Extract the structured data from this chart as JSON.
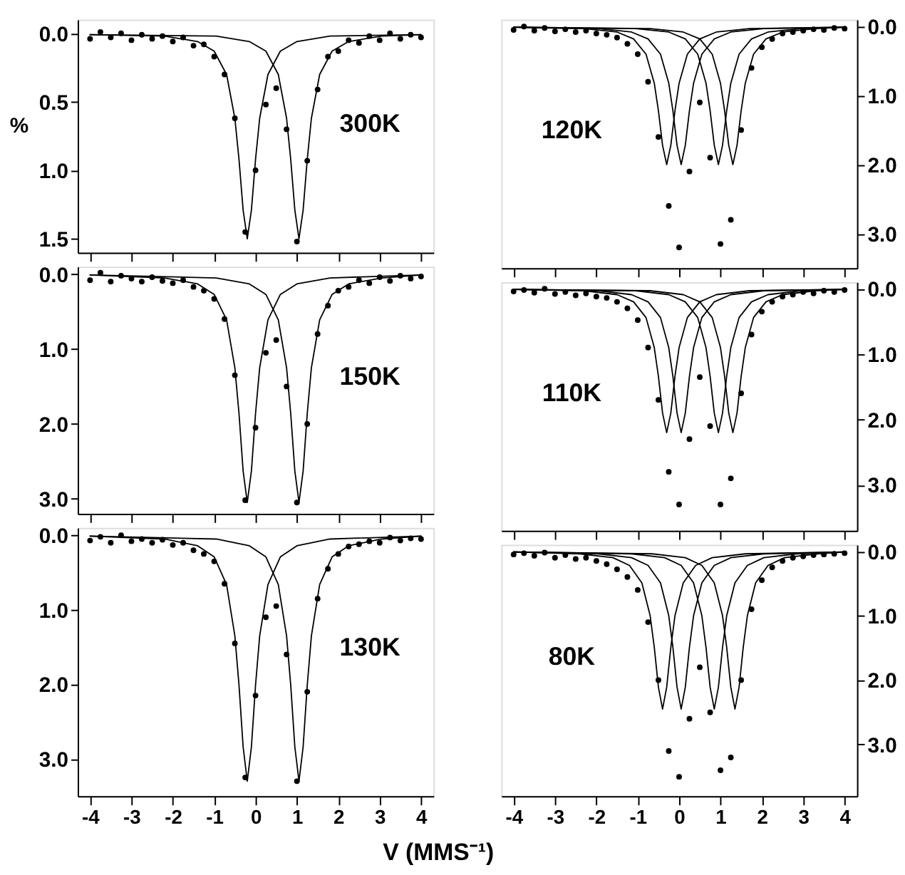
{
  "chart_data": [
    {
      "type": "line",
      "ylabel": "%",
      "annotations": [
        "300K"
      ],
      "xlim": [
        -4.3,
        4.3
      ],
      "xticks": [
        -4,
        -3,
        -2,
        -1,
        0,
        1,
        2,
        3,
        4
      ],
      "ylim": [
        1.6,
        -0.1
      ],
      "yticks": [
        {
          "value": 0,
          "label": "0.0"
        },
        {
          "value": 0.5,
          "label": "0.5"
        },
        {
          "value": 1,
          "label": "1.0"
        },
        {
          "value": 1.5,
          "label": "1.5"
        }
      ],
      "tick_labels": "y",
      "series": [
        {
          "type": "scatter",
          "marker": "circle",
          "color": "#000000",
          "x": [
            -4,
            -3.75,
            -3.5,
            -3.25,
            -3,
            -2.75,
            -2.5,
            -2.25,
            -2,
            -1.75,
            -1.5,
            -1.25,
            -1,
            -0.75,
            -0.5,
            -0.25,
            0,
            0.25,
            0.5,
            0.75,
            1,
            1.25,
            1.5,
            1.75,
            2,
            2.25,
            2.5,
            2.75,
            3,
            3.25,
            3.5,
            3.75,
            4
          ],
          "values": [
            0.04,
            -0.01,
            0.03,
            0.0,
            0.05,
            0.01,
            0.04,
            0.02,
            0.06,
            0.03,
            0.09,
            0.08,
            0.17,
            0.3,
            0.62,
            1.45,
            1.0,
            0.52,
            0.4,
            0.7,
            1.52,
            0.93,
            0.41,
            0.17,
            0.13,
            0.05,
            0.07,
            0.02,
            0.05,
            0.0,
            0.04,
            0.01,
            0.03
          ]
        },
        {
          "type": "line",
          "line_style": "solid",
          "color": "#000000",
          "x": [
            -4,
            -2.2,
            -1.4,
            -1.0,
            -0.7,
            -0.5,
            -0.4,
            -0.3,
            -0.2,
            -0.1,
            0.0,
            0.1,
            0.3,
            0.6,
            1.0,
            1.8,
            4
          ],
          "values": [
            0.01,
            0.02,
            0.06,
            0.13,
            0.3,
            0.62,
            0.92,
            1.29,
            1.5,
            1.29,
            0.92,
            0.62,
            0.3,
            0.13,
            0.06,
            0.02,
            0.01
          ]
        },
        {
          "type": "line",
          "line_style": "solid",
          "color": "#000000",
          "x": [
            -4,
            -0.95,
            -0.15,
            0.25,
            0.55,
            0.75,
            0.85,
            0.95,
            1.05,
            1.15,
            1.25,
            1.35,
            1.55,
            1.85,
            2.25,
            3.05,
            4
          ],
          "values": [
            0.01,
            0.02,
            0.06,
            0.13,
            0.3,
            0.62,
            0.92,
            1.29,
            1.5,
            1.29,
            0.92,
            0.62,
            0.3,
            0.13,
            0.06,
            0.02,
            0.01
          ]
        }
      ]
    },
    {
      "type": "line",
      "annotations": [
        "150K"
      ],
      "xlim": [
        -4.3,
        4.3
      ],
      "xticks": [
        -4,
        -3,
        -2,
        -1,
        0,
        1,
        2,
        3,
        4
      ],
      "ylim": [
        3.2,
        -0.1
      ],
      "yticks": [
        {
          "value": 0,
          "label": "0.0"
        },
        {
          "value": 1,
          "label": "1.0"
        },
        {
          "value": 2,
          "label": "2.0"
        },
        {
          "value": 3,
          "label": "3.0"
        }
      ],
      "tick_labels": "y",
      "series": [
        {
          "type": "scatter",
          "marker": "circle",
          "color": "#000000",
          "x": [
            -4,
            -3.75,
            -3.5,
            -3.25,
            -3,
            -2.75,
            -2.5,
            -2.25,
            -2,
            -1.75,
            -1.5,
            -1.25,
            -1,
            -0.75,
            -0.5,
            -0.25,
            0,
            0.25,
            0.5,
            0.75,
            1,
            1.25,
            1.5,
            1.75,
            2,
            2.25,
            2.5,
            2.75,
            3,
            3.25,
            3.5,
            3.75,
            4
          ],
          "values": [
            0.08,
            -0.02,
            0.1,
            0.02,
            0.06,
            0.1,
            0.04,
            0.09,
            0.12,
            0.08,
            0.17,
            0.22,
            0.33,
            0.6,
            1.35,
            3.02,
            2.05,
            1.05,
            0.88,
            1.5,
            3.05,
            2.0,
            0.8,
            0.42,
            0.22,
            0.17,
            0.08,
            0.12,
            0.04,
            0.09,
            0.02,
            0.06,
            0.03
          ]
        },
        {
          "type": "line",
          "line_style": "solid",
          "color": "#000000",
          "x": [
            -4,
            -2.2,
            -1.4,
            -1.0,
            -0.7,
            -0.5,
            -0.4,
            -0.3,
            -0.2,
            -0.1,
            0.0,
            0.1,
            0.3,
            0.6,
            1.0,
            1.8,
            4
          ],
          "values": [
            0.01,
            0.05,
            0.13,
            0.27,
            0.61,
            1.25,
            1.86,
            2.63,
            3.05,
            2.63,
            1.86,
            1.25,
            0.61,
            0.27,
            0.13,
            0.05,
            0.01
          ]
        },
        {
          "type": "line",
          "line_style": "solid",
          "color": "#000000",
          "x": [
            -4,
            -0.95,
            -0.15,
            0.25,
            0.55,
            0.75,
            0.85,
            0.95,
            1.05,
            1.15,
            1.25,
            1.35,
            1.55,
            1.85,
            2.25,
            3.05,
            4
          ],
          "values": [
            0.01,
            0.05,
            0.13,
            0.27,
            0.61,
            1.25,
            1.86,
            2.63,
            3.05,
            2.63,
            1.86,
            1.25,
            0.61,
            0.27,
            0.13,
            0.05,
            0.01
          ]
        }
      ]
    },
    {
      "type": "line",
      "xlabel": "V (MMS⁻¹)",
      "annotations": [
        "130K"
      ],
      "xlim": [
        -4.3,
        4.3
      ],
      "xticks": [
        -4,
        -3,
        -2,
        -1,
        0,
        1,
        2,
        3,
        4
      ],
      "ylim": [
        3.5,
        -0.1
      ],
      "yticks": [
        {
          "value": 0,
          "label": "0.0"
        },
        {
          "value": 1,
          "label": "1.0"
        },
        {
          "value": 2,
          "label": "2.0"
        },
        {
          "value": 3,
          "label": "3.0"
        }
      ],
      "series": [
        {
          "type": "scatter",
          "marker": "circle",
          "color": "#000000",
          "x": [
            -4,
            -3.75,
            -3.5,
            -3.25,
            -3,
            -2.75,
            -2.5,
            -2.25,
            -2,
            -1.75,
            -1.5,
            -1.25,
            -1,
            -0.75,
            -0.5,
            -0.25,
            0,
            0.25,
            0.5,
            0.75,
            1,
            1.25,
            1.5,
            1.75,
            2,
            2.25,
            2.5,
            2.75,
            3,
            3.25,
            3.5,
            3.75,
            4
          ],
          "values": [
            0.07,
            0.02,
            0.1,
            0.0,
            0.08,
            0.05,
            0.1,
            0.06,
            0.13,
            0.1,
            0.2,
            0.25,
            0.35,
            0.65,
            1.45,
            3.25,
            2.15,
            1.1,
            0.95,
            1.6,
            3.3,
            2.1,
            0.85,
            0.45,
            0.25,
            0.15,
            0.12,
            0.08,
            0.1,
            0.03,
            0.07,
            0.04,
            0.05
          ]
        },
        {
          "type": "line",
          "line_style": "solid",
          "color": "#000000",
          "x": [
            -4,
            -2.2,
            -1.4,
            -1.0,
            -0.7,
            -0.5,
            -0.4,
            -0.3,
            -0.2,
            -0.1,
            0.0,
            0.1,
            0.3,
            0.6,
            1.0,
            1.8,
            4
          ],
          "values": [
            0.01,
            0.05,
            0.14,
            0.29,
            0.66,
            1.35,
            2.01,
            2.84,
            3.3,
            2.84,
            2.01,
            1.35,
            0.66,
            0.29,
            0.14,
            0.05,
            0.01
          ]
        },
        {
          "type": "line",
          "line_style": "solid",
          "color": "#000000",
          "x": [
            -4,
            -0.95,
            -0.15,
            0.25,
            0.55,
            0.75,
            0.85,
            0.95,
            1.05,
            1.15,
            1.25,
            1.35,
            1.55,
            1.85,
            2.25,
            3.05,
            4
          ],
          "values": [
            0.01,
            0.05,
            0.14,
            0.29,
            0.66,
            1.35,
            2.01,
            2.84,
            3.3,
            2.84,
            2.01,
            1.35,
            0.66,
            0.29,
            0.14,
            0.05,
            0.01
          ]
        }
      ]
    },
    {
      "type": "line",
      "annotations": [
        "120K"
      ],
      "xlim": [
        -4.3,
        4.3
      ],
      "xticks": [
        -4,
        -3,
        -2,
        -1,
        0,
        1,
        2,
        3,
        4
      ],
      "ylim": [
        3.5,
        -0.1
      ],
      "yticks": [
        {
          "value": 0,
          "label": "0.0"
        },
        {
          "value": 1,
          "label": "1.0"
        },
        {
          "value": 2,
          "label": "2.0"
        },
        {
          "value": 3,
          "label": "3.0"
        }
      ],
      "tick_labels": "y",
      "series": [
        {
          "type": "scatter",
          "marker": "circle",
          "color": "#000000",
          "x": [
            -4,
            -3.75,
            -3.5,
            -3.25,
            -3,
            -2.75,
            -2.5,
            -2.25,
            -2,
            -1.75,
            -1.5,
            -1.25,
            -1,
            -0.75,
            -0.5,
            -0.25,
            0,
            0.25,
            0.5,
            0.75,
            1,
            1.25,
            1.5,
            1.75,
            2,
            2.25,
            2.5,
            2.75,
            3,
            3.25,
            3.5,
            3.75,
            4
          ],
          "values": [
            0.05,
            0.0,
            0.06,
            0.02,
            0.07,
            0.04,
            0.08,
            0.06,
            0.1,
            0.12,
            0.16,
            0.25,
            0.4,
            0.8,
            1.6,
            2.6,
            3.2,
            2.1,
            1.1,
            1.9,
            3.15,
            2.8,
            1.5,
            0.6,
            0.3,
            0.18,
            0.1,
            0.08,
            0.06,
            0.04,
            0.05,
            0.02,
            0.03
          ]
        },
        {
          "type": "line",
          "line_style": "solid",
          "color": "#000000",
          "x": [
            -4,
            -2.3,
            -1.5,
            -1.1,
            -0.8,
            -0.6,
            -0.5,
            -0.4,
            -0.3,
            -0.2,
            -0.1,
            0.0,
            0.2,
            0.5,
            0.9,
            1.7,
            4
          ],
          "values": [
            0.01,
            0.03,
            0.08,
            0.18,
            0.4,
            0.82,
            1.22,
            1.72,
            2.0,
            1.72,
            1.22,
            0.82,
            0.4,
            0.18,
            0.08,
            0.03,
            0.01
          ]
        },
        {
          "type": "line",
          "line_style": "solid",
          "color": "#000000",
          "x": [
            -4,
            -1.95,
            -1.15,
            -0.75,
            -0.45,
            -0.25,
            -0.15,
            -0.05,
            0.05,
            0.15,
            0.25,
            0.35,
            0.55,
            0.85,
            1.25,
            2.05,
            4
          ],
          "values": [
            0.01,
            0.03,
            0.08,
            0.18,
            0.4,
            0.82,
            1.22,
            1.72,
            2.0,
            1.72,
            1.22,
            0.82,
            0.4,
            0.18,
            0.08,
            0.03,
            0.01
          ]
        },
        {
          "type": "line",
          "line_style": "solid",
          "color": "#000000",
          "x": [
            -4,
            -1.05,
            -0.25,
            0.15,
            0.45,
            0.65,
            0.75,
            0.85,
            0.95,
            1.05,
            1.15,
            1.25,
            1.45,
            1.75,
            2.15,
            2.95,
            4
          ],
          "values": [
            0.01,
            0.03,
            0.08,
            0.18,
            0.4,
            0.82,
            1.22,
            1.72,
            2.0,
            1.72,
            1.22,
            0.82,
            0.4,
            0.18,
            0.08,
            0.03,
            0.01
          ]
        },
        {
          "type": "line",
          "line_style": "solid",
          "color": "#000000",
          "x": [
            -4,
            -0.7,
            0.1,
            0.5,
            0.8,
            1.0,
            1.1,
            1.2,
            1.3,
            1.4,
            1.5,
            1.6,
            1.8,
            2.1,
            2.5,
            3.3,
            4
          ],
          "values": [
            0.01,
            0.03,
            0.08,
            0.18,
            0.4,
            0.82,
            1.22,
            1.72,
            2.0,
            1.72,
            1.22,
            0.82,
            0.4,
            0.18,
            0.08,
            0.03,
            0.01
          ]
        }
      ]
    },
    {
      "type": "line",
      "annotations": [
        "110K"
      ],
      "xlim": [
        -4.3,
        4.3
      ],
      "xticks": [
        -4,
        -3,
        -2,
        -1,
        0,
        1,
        2,
        3,
        4
      ],
      "ylim": [
        3.7,
        -0.1
      ],
      "yticks": [
        {
          "value": 0,
          "label": "0.0"
        },
        {
          "value": 1,
          "label": "1.0"
        },
        {
          "value": 2,
          "label": "2.0"
        },
        {
          "value": 3,
          "label": "3.0"
        }
      ],
      "tick_labels": "y",
      "series": [
        {
          "type": "scatter",
          "marker": "circle",
          "color": "#000000",
          "x": [
            -4,
            -3.75,
            -3.5,
            -3.25,
            -3,
            -2.75,
            -2.5,
            -2.25,
            -2,
            -1.75,
            -1.5,
            -1.25,
            -1,
            -0.75,
            -0.5,
            -0.25,
            0,
            0.25,
            0.5,
            0.75,
            1,
            1.25,
            1.5,
            1.75,
            2,
            2.25,
            2.5,
            2.75,
            3,
            3.25,
            3.5,
            3.75,
            4
          ],
          "values": [
            0.04,
            0.02,
            0.06,
            0.0,
            0.08,
            0.05,
            0.1,
            0.07,
            0.12,
            0.14,
            0.2,
            0.3,
            0.48,
            0.9,
            1.7,
            2.8,
            3.3,
            2.3,
            1.35,
            2.1,
            3.3,
            2.9,
            1.6,
            0.7,
            0.35,
            0.2,
            0.12,
            0.09,
            0.05,
            0.07,
            0.03,
            0.05,
            0.02
          ]
        },
        {
          "type": "line",
          "line_style": "solid",
          "color": "#000000",
          "x": [
            -4,
            -2.3,
            -1.5,
            -1.1,
            -0.8,
            -0.6,
            -0.5,
            -0.4,
            -0.3,
            -0.2,
            -0.1,
            0.0,
            0.2,
            0.5,
            0.9,
            1.7,
            4
          ],
          "values": [
            0.01,
            0.03,
            0.09,
            0.2,
            0.44,
            0.9,
            1.34,
            1.9,
            2.2,
            1.9,
            1.34,
            0.9,
            0.44,
            0.2,
            0.09,
            0.03,
            0.01
          ]
        },
        {
          "type": "line",
          "line_style": "solid",
          "color": "#000000",
          "x": [
            -4,
            -1.95,
            -1.15,
            -0.75,
            -0.45,
            -0.25,
            -0.15,
            -0.05,
            0.05,
            0.15,
            0.25,
            0.35,
            0.55,
            0.85,
            1.25,
            2.05,
            4
          ],
          "values": [
            0.01,
            0.03,
            0.09,
            0.2,
            0.44,
            0.9,
            1.34,
            1.9,
            2.2,
            1.9,
            1.34,
            0.9,
            0.44,
            0.2,
            0.09,
            0.03,
            0.01
          ]
        },
        {
          "type": "line",
          "line_style": "solid",
          "color": "#000000",
          "x": [
            -4,
            -1.05,
            -0.25,
            0.15,
            0.45,
            0.65,
            0.75,
            0.85,
            0.95,
            1.05,
            1.15,
            1.25,
            1.45,
            1.75,
            2.15,
            2.95,
            4
          ],
          "values": [
            0.01,
            0.03,
            0.09,
            0.2,
            0.44,
            0.9,
            1.34,
            1.9,
            2.2,
            1.9,
            1.34,
            0.9,
            0.44,
            0.2,
            0.09,
            0.03,
            0.01
          ]
        },
        {
          "type": "line",
          "line_style": "solid",
          "color": "#000000",
          "x": [
            -4,
            -0.7,
            0.1,
            0.5,
            0.8,
            1.0,
            1.1,
            1.2,
            1.3,
            1.4,
            1.5,
            1.6,
            1.8,
            2.1,
            2.5,
            3.3,
            4
          ],
          "values": [
            0.01,
            0.03,
            0.09,
            0.2,
            0.44,
            0.9,
            1.34,
            1.9,
            2.2,
            1.9,
            1.34,
            0.9,
            0.44,
            0.2,
            0.09,
            0.03,
            0.01
          ]
        }
      ]
    },
    {
      "type": "line",
      "annotations": [
        "80K"
      ],
      "xlim": [
        -4.3,
        4.3
      ],
      "xticks": [
        -4,
        -3,
        -2,
        -1,
        0,
        1,
        2,
        3,
        4
      ],
      "ylim": [
        3.8,
        -0.1
      ],
      "yticks": [
        {
          "value": 0,
          "label": "0.0"
        },
        {
          "value": 1,
          "label": "1.0"
        },
        {
          "value": 2,
          "label": "2.0"
        },
        {
          "value": 3,
          "label": "3.0"
        }
      ],
      "series": [
        {
          "type": "scatter",
          "marker": "circle",
          "color": "#000000",
          "x": [
            -4,
            -3.75,
            -3.5,
            -3.25,
            -3,
            -2.75,
            -2.5,
            -2.25,
            -2,
            -1.75,
            -1.5,
            -1.25,
            -1,
            -0.75,
            -0.5,
            -0.25,
            0,
            0.25,
            0.5,
            0.75,
            1,
            1.25,
            1.5,
            1.75,
            2,
            2.25,
            2.5,
            2.75,
            3,
            3.25,
            3.5,
            3.75,
            4
          ],
          "values": [
            0.05,
            0.03,
            0.07,
            0.02,
            0.1,
            0.06,
            0.12,
            0.1,
            0.15,
            0.2,
            0.28,
            0.4,
            0.6,
            1.1,
            2.0,
            3.1,
            3.5,
            2.6,
            1.8,
            2.5,
            3.4,
            3.2,
            2.0,
            0.9,
            0.45,
            0.25,
            0.15,
            0.1,
            0.08,
            0.06,
            0.05,
            0.04,
            0.03
          ]
        },
        {
          "type": "line",
          "line_style": "solid",
          "color": "#000000",
          "x": [
            -4,
            -2.4,
            -1.6,
            -1.2,
            -0.9,
            -0.7,
            -0.6,
            -0.5,
            -0.4,
            -0.3,
            -0.2,
            -0.1,
            0.1,
            0.4,
            0.8,
            1.6,
            4
          ],
          "values": [
            0.01,
            0.04,
            0.1,
            0.22,
            0.49,
            1.0,
            1.49,
            2.11,
            2.45,
            2.11,
            1.49,
            1.0,
            0.49,
            0.22,
            0.1,
            0.04,
            0.01
          ]
        },
        {
          "type": "line",
          "line_style": "solid",
          "color": "#000000",
          "x": [
            -4,
            -1.95,
            -1.15,
            -0.75,
            -0.45,
            -0.25,
            -0.15,
            -0.05,
            0.05,
            0.15,
            0.25,
            0.35,
            0.55,
            0.85,
            1.25,
            2.05,
            4
          ],
          "values": [
            0.01,
            0.04,
            0.1,
            0.22,
            0.49,
            1.0,
            1.49,
            2.11,
            2.45,
            2.11,
            1.49,
            1.0,
            0.49,
            0.22,
            0.1,
            0.04,
            0.01
          ]
        },
        {
          "type": "line",
          "line_style": "solid",
          "color": "#000000",
          "x": [
            -4,
            -1.15,
            -0.35,
            0.05,
            0.35,
            0.55,
            0.65,
            0.75,
            0.85,
            0.95,
            1.05,
            1.15,
            1.35,
            1.65,
            2.05,
            2.85,
            4
          ],
          "values": [
            0.01,
            0.04,
            0.1,
            0.22,
            0.49,
            1.0,
            1.49,
            2.11,
            2.45,
            2.11,
            1.49,
            1.0,
            0.49,
            0.22,
            0.1,
            0.04,
            0.01
          ]
        },
        {
          "type": "line",
          "line_style": "solid",
          "color": "#000000",
          "x": [
            -4,
            -0.65,
            0.15,
            0.55,
            0.85,
            1.05,
            1.15,
            1.25,
            1.35,
            1.45,
            1.55,
            1.65,
            1.85,
            2.15,
            2.55,
            3.35,
            4
          ],
          "values": [
            0.01,
            0.04,
            0.1,
            0.22,
            0.49,
            1.0,
            1.49,
            2.11,
            2.45,
            2.11,
            1.49,
            1.0,
            0.49,
            0.22,
            0.1,
            0.04,
            0.01
          ]
        }
      ]
    }
  ]
}
